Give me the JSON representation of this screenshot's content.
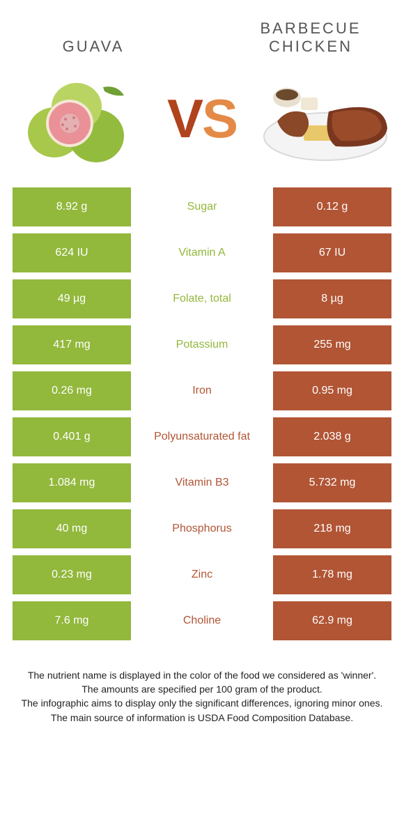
{
  "titles": {
    "left": "Guava",
    "right_line1": "Barbecue",
    "right_line2": "chicken"
  },
  "vs": {
    "v": "V",
    "s": "S"
  },
  "colors": {
    "left_bg": "#92b83c",
    "right_bg": "#b15535",
    "left_text": "#92b83c",
    "right_text": "#b15535"
  },
  "rows": [
    {
      "left": "8.92 g",
      "label": "Sugar",
      "right": "0.12 g",
      "winner": "left"
    },
    {
      "left": "624 IU",
      "label": "Vitamin A",
      "right": "67 IU",
      "winner": "left"
    },
    {
      "left": "49 µg",
      "label": "Folate, total",
      "right": "8 µg",
      "winner": "left"
    },
    {
      "left": "417 mg",
      "label": "Potassium",
      "right": "255 mg",
      "winner": "left"
    },
    {
      "left": "0.26 mg",
      "label": "Iron",
      "right": "0.95 mg",
      "winner": "right"
    },
    {
      "left": "0.401 g",
      "label": "Polyunsaturated fat",
      "right": "2.038 g",
      "winner": "right"
    },
    {
      "left": "1.084 mg",
      "label": "Vitamin B3",
      "right": "5.732 mg",
      "winner": "right"
    },
    {
      "left": "40 mg",
      "label": "Phosphorus",
      "right": "218 mg",
      "winner": "right"
    },
    {
      "left": "0.23 mg",
      "label": "Zinc",
      "right": "1.78 mg",
      "winner": "right"
    },
    {
      "left": "7.6 mg",
      "label": "Choline",
      "right": "62.9 mg",
      "winner": "right"
    }
  ],
  "footer": {
    "l1": "The nutrient name is displayed in the color of the food we considered as 'winner'.",
    "l2": "The amounts are specified per 100 gram of the product.",
    "l3": "The infographic aims to display only the significant differences, ignoring minor ones.",
    "l4": "The main source of information is USDA Food Composition Database."
  }
}
